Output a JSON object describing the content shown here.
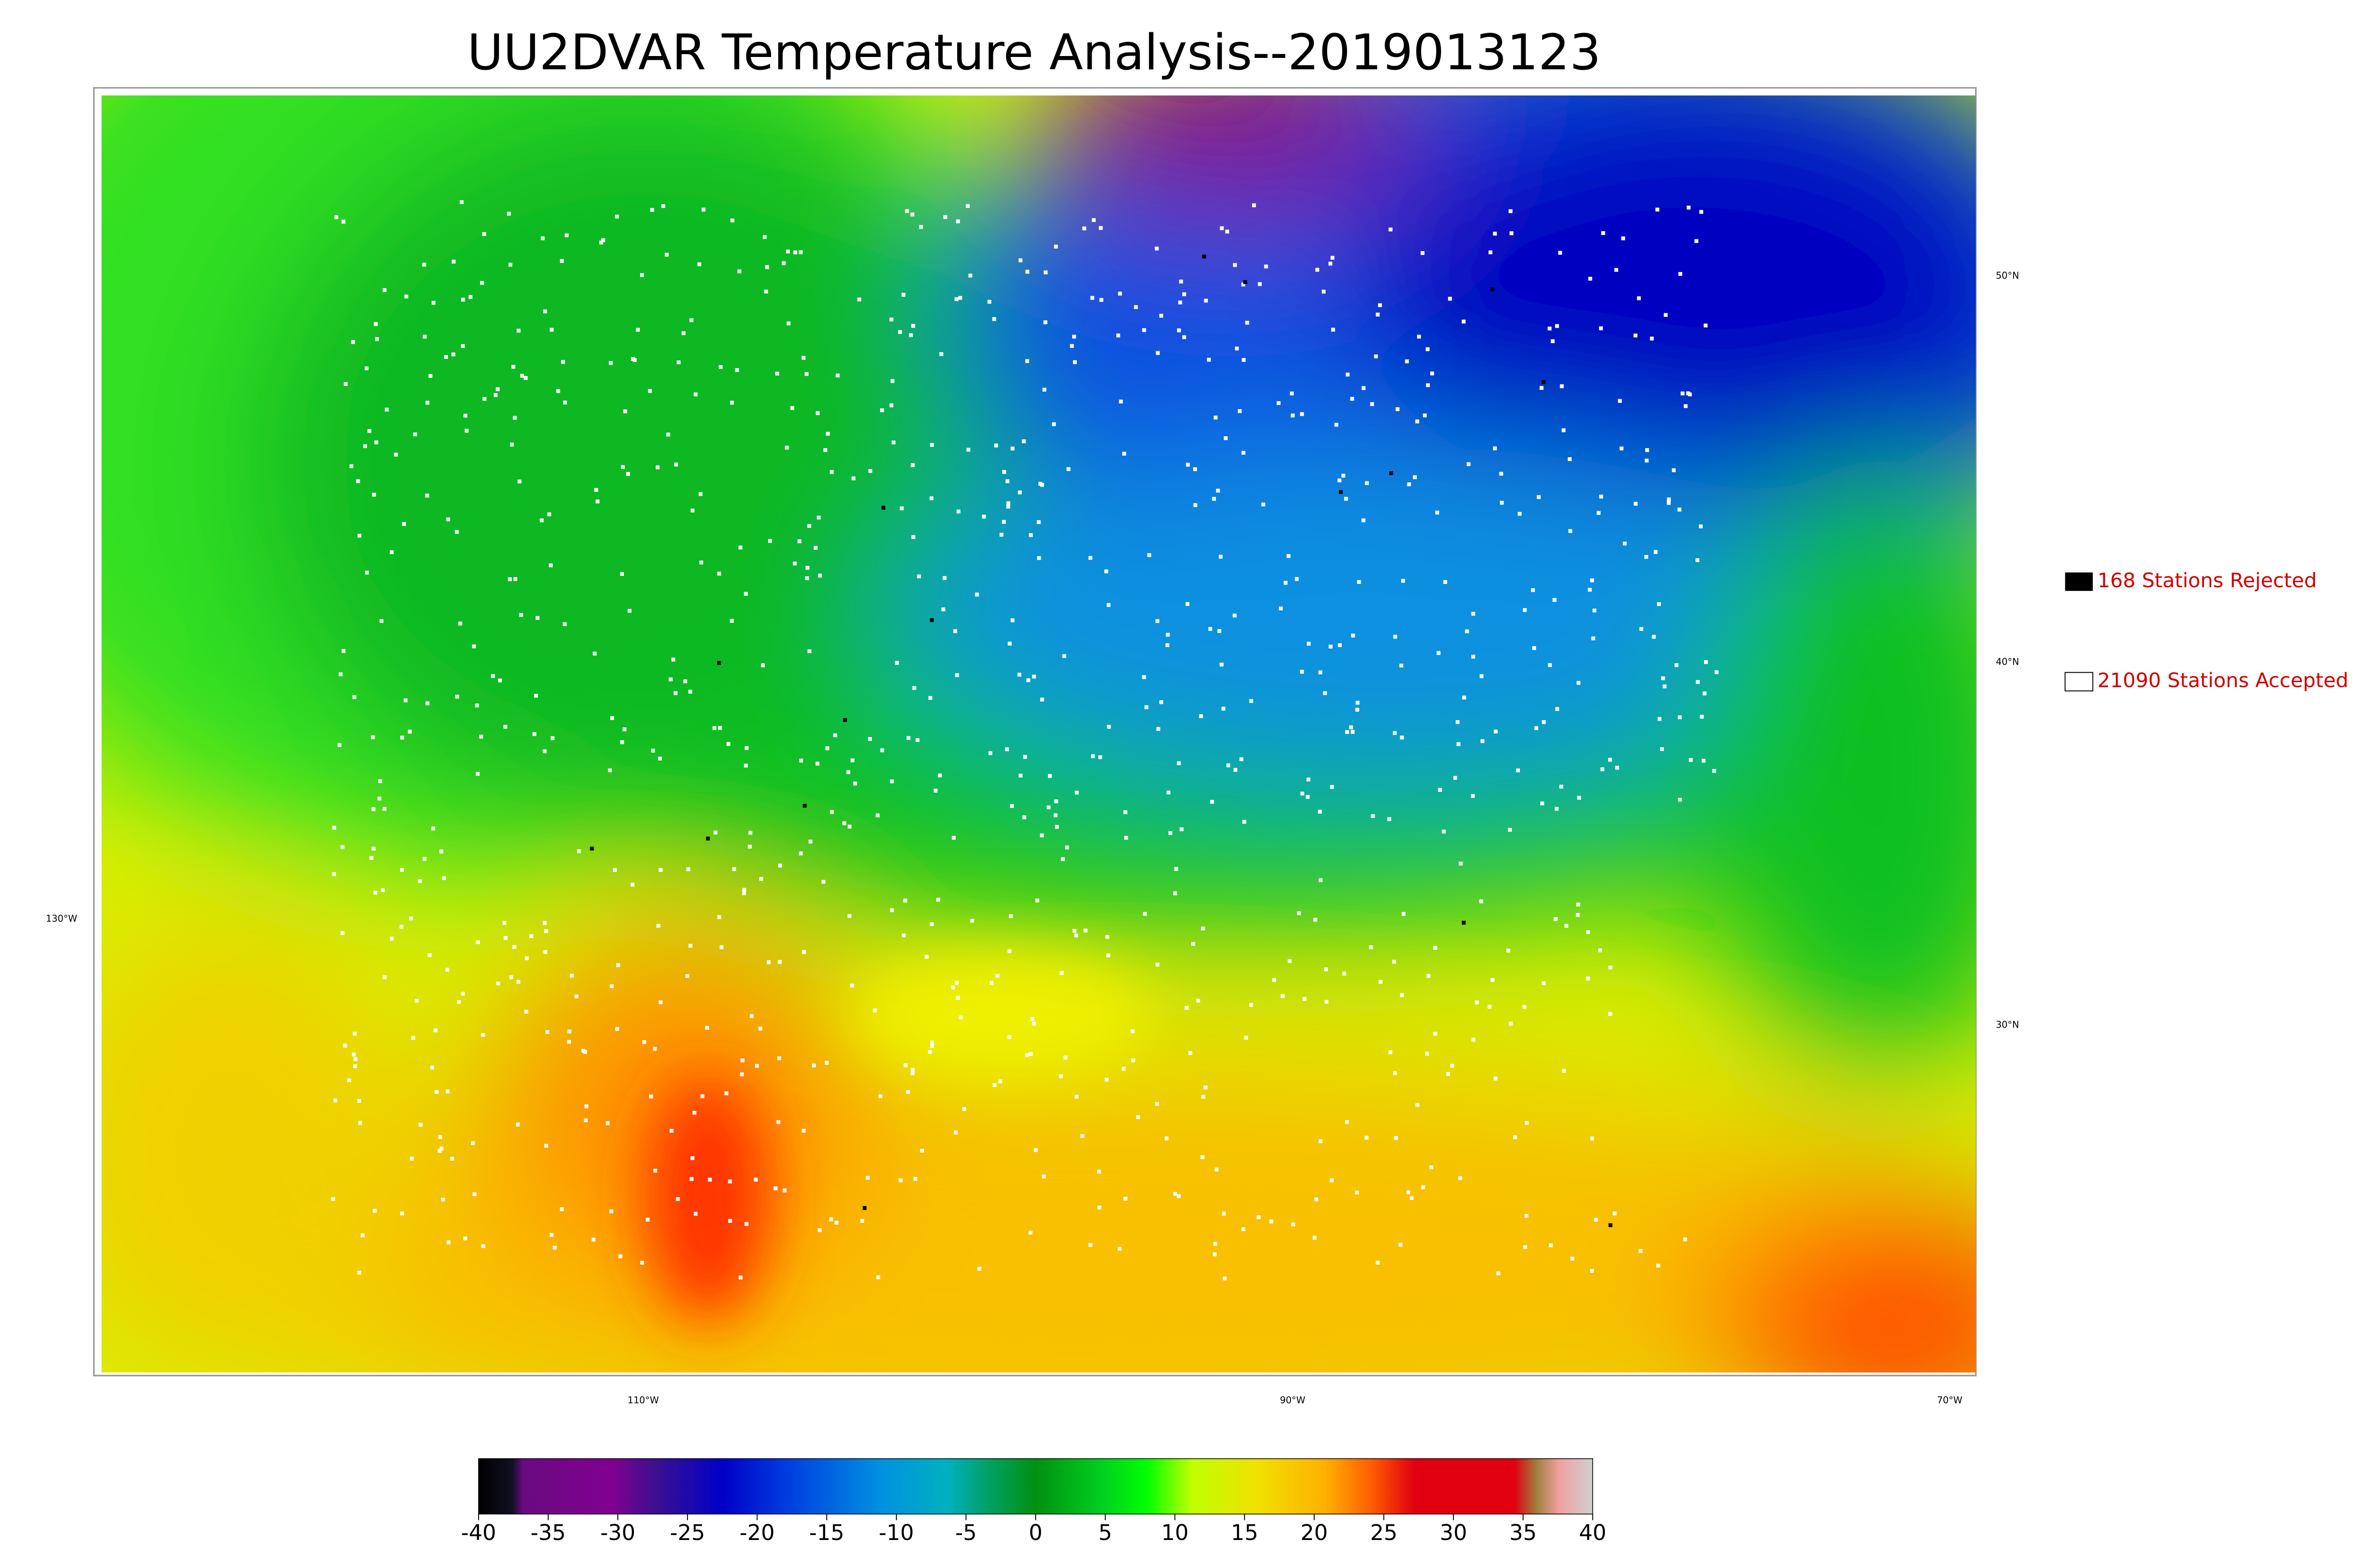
{
  "title": "UU2DVAR Temperature Analysis--2019013123",
  "legend": [
    {
      "label": "168 Stations Rejected"
    },
    {
      "label": "21090 Stations Accepted"
    }
  ],
  "latitude_labels": [
    "50°N",
    "40°N",
    "30°N"
  ],
  "longitude_labels": [
    "130°W",
    "110°W",
    "90°W",
    "70°W"
  ],
  "colorbar": {
    "ticks": [
      -40,
      -35,
      -30,
      -25,
      -20,
      -15,
      -10,
      -5,
      0,
      5,
      10,
      15,
      20,
      25,
      30,
      35,
      40
    ]
  }
}
